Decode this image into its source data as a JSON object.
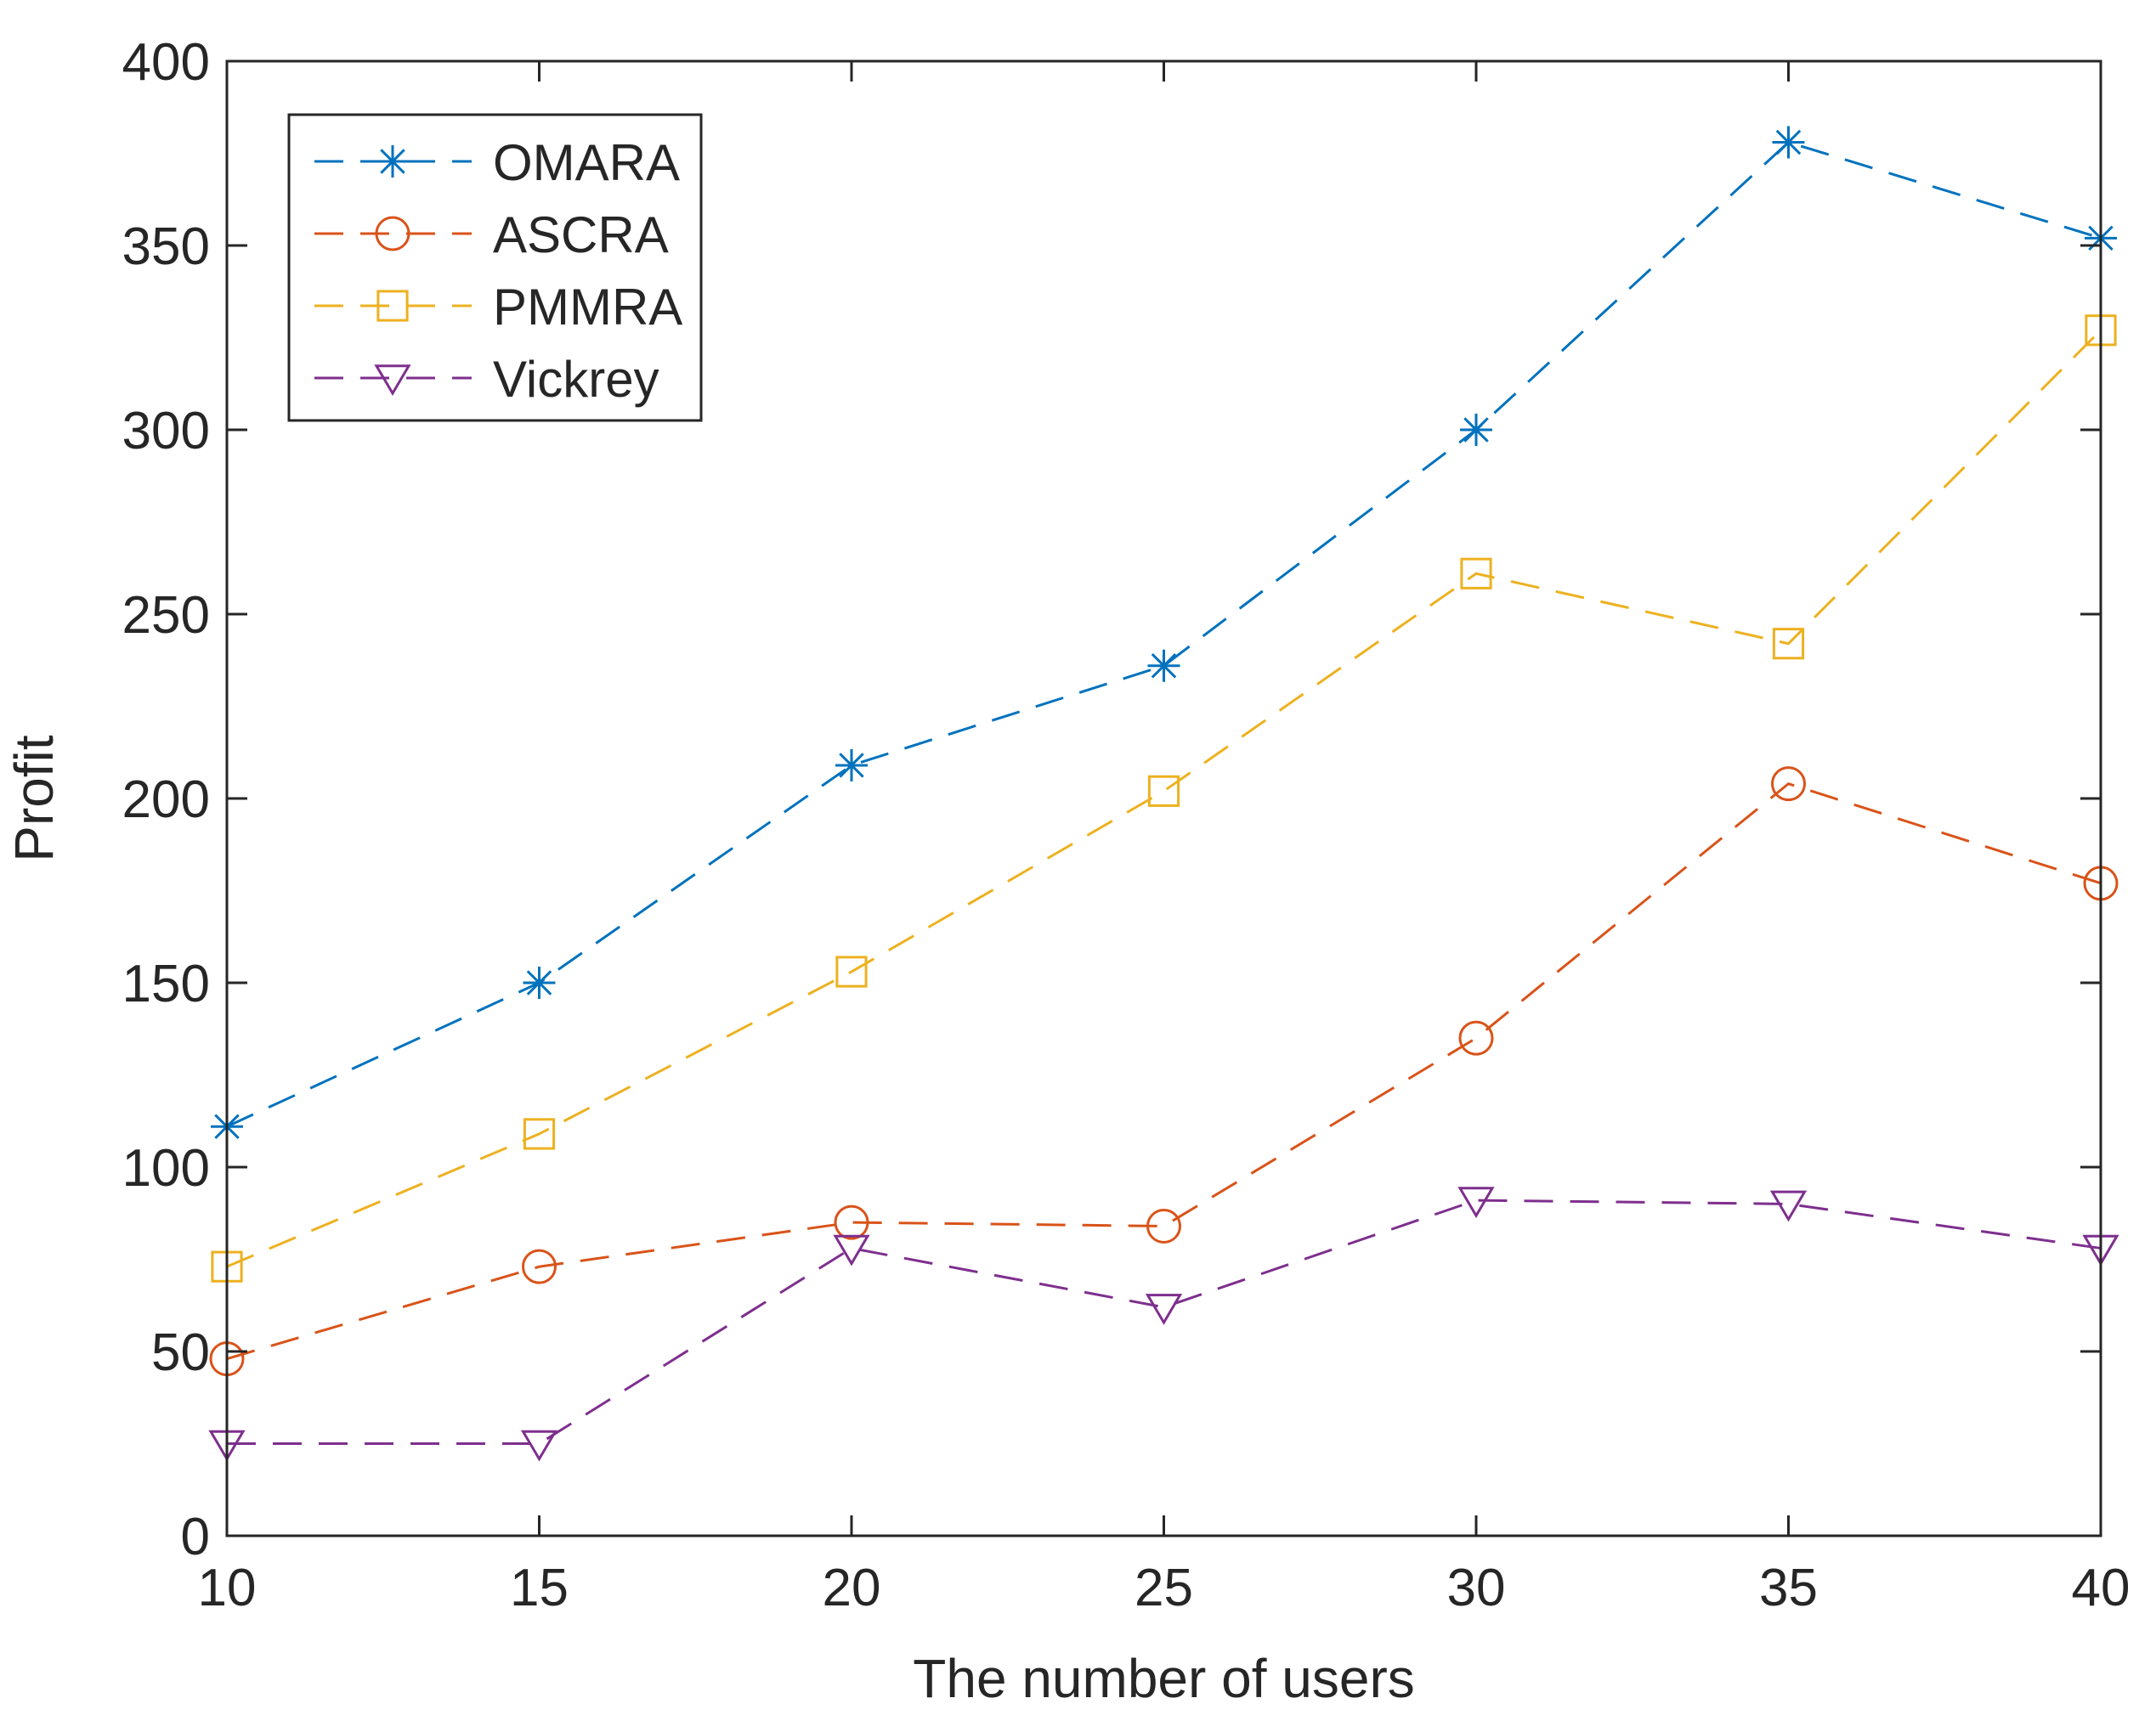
{
  "chart_data": {
    "type": "line",
    "title": "",
    "xlabel": "The number of users",
    "ylabel": "Profit",
    "x": [
      10,
      15,
      20,
      25,
      30,
      35,
      40
    ],
    "xlim": [
      10,
      40
    ],
    "ylim": [
      0,
      400
    ],
    "xticks": [
      10,
      15,
      20,
      25,
      30,
      35,
      40
    ],
    "yticks": [
      0,
      50,
      100,
      150,
      200,
      250,
      300,
      350,
      400
    ],
    "grid": false,
    "legend_position": "top-left",
    "series": [
      {
        "name": "OMARA",
        "marker": "asterisk",
        "color": "#0072BD",
        "values": [
          111,
          150,
          209,
          236,
          300,
          378,
          352
        ]
      },
      {
        "name": "ASCRA",
        "marker": "circle",
        "color": "#D95319",
        "values": [
          48,
          73,
          85,
          84,
          135,
          204,
          177
        ]
      },
      {
        "name": "PMMRA",
        "marker": "square",
        "color": "#EDB120",
        "values": [
          73,
          109,
          153,
          202,
          261,
          242,
          327
        ]
      },
      {
        "name": "Vickrey",
        "marker": "triangle-down",
        "color": "#7E2F8E",
        "values": [
          25,
          25,
          78,
          62,
          91,
          90,
          78
        ]
      }
    ]
  }
}
